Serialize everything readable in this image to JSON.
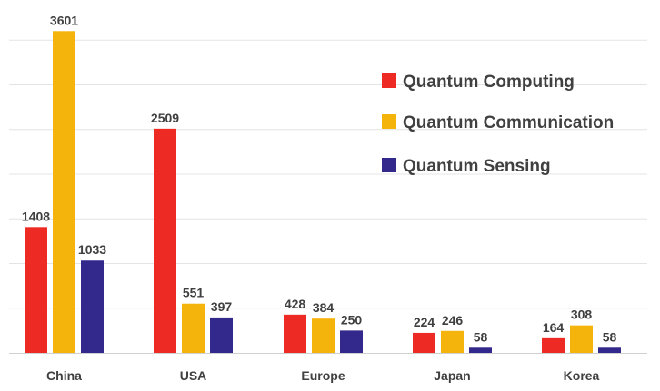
{
  "chart_data": {
    "type": "bar",
    "categories": [
      "China",
      "USA",
      "Europe",
      "Japan",
      "Korea"
    ],
    "series": [
      {
        "name": "Quantum Computing",
        "color": "#ee2a24",
        "values": [
          1408,
          2509,
          428,
          224,
          164
        ]
      },
      {
        "name": "Quantum Communication",
        "color": "#f4b40c",
        "values": [
          3601,
          551,
          384,
          246,
          308
        ]
      },
      {
        "name": "Quantum Sensing",
        "color": "#33288c",
        "values": [
          1033,
          397,
          250,
          58,
          58
        ]
      }
    ],
    "ylim": [
      0,
      3500
    ],
    "grid": true,
    "legend_position": "top-right"
  }
}
